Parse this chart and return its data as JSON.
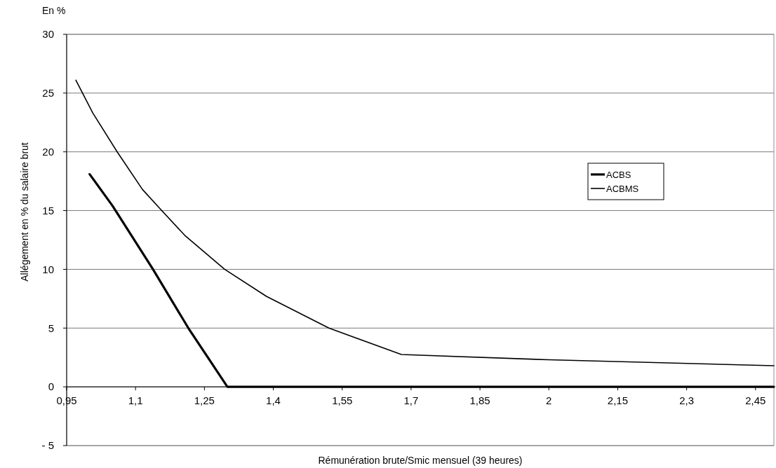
{
  "chart_data": {
    "type": "line",
    "xlabel": "Rémunération brute/Smic mensuel (39 heures)",
    "ylabel": "Allégement en % du salaire brut",
    "annotations": [
      "En %"
    ],
    "xlim": [
      0.95,
      2.49
    ],
    "ylim": [
      -5,
      30
    ],
    "xticks": [
      {
        "value": 0.95,
        "label": "0,95"
      },
      {
        "value": 1.1,
        "label": "1,1"
      },
      {
        "value": 1.25,
        "label": "1,25"
      },
      {
        "value": 1.4,
        "label": "1,4"
      },
      {
        "value": 1.55,
        "label": "1,55"
      },
      {
        "value": 1.7,
        "label": "1,7"
      },
      {
        "value": 1.85,
        "label": "1,85"
      },
      2,
      {
        "value": 2.15,
        "label": "2,15"
      },
      {
        "value": 2.3,
        "label": "2,3"
      },
      {
        "value": 2.45,
        "label": "2,45"
      }
    ],
    "yticks": [
      {
        "value": -5,
        "label": "- 5"
      },
      0,
      5,
      10,
      15,
      20,
      25,
      30
    ],
    "grid": "y",
    "legend": "right",
    "marker": "none",
    "line_style": "solid",
    "series": [
      {
        "name": "ACBS",
        "color": "#000000",
        "x": [
          1.0,
          1.05,
          1.138,
          1.215,
          1.3,
          2.49
        ],
        "values": [
          18.1,
          15.4,
          10.0,
          5.0,
          0,
          0
        ]
      },
      {
        "name": "ACBMS",
        "color": "#000000",
        "x": [
          0.97,
          1.007,
          1.06,
          1.115,
          1.157,
          1.207,
          1.294,
          1.385,
          1.521,
          1.679,
          2.0,
          2.49
        ],
        "values": [
          26.1,
          23.3,
          20.0,
          16.8,
          15.0,
          12.9,
          10.0,
          7.7,
          5.0,
          2.75,
          2.3,
          1.8
        ]
      }
    ]
  }
}
